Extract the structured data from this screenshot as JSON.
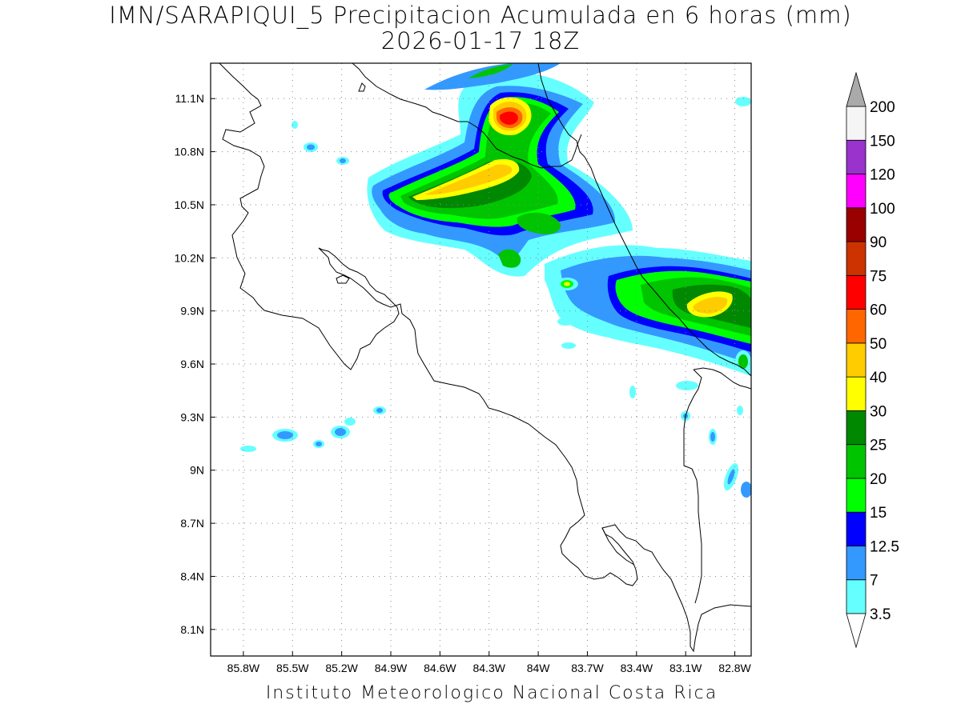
{
  "map": {
    "title_line1": "IMN/SARAPIQUI_5 Precipitacion Acumulada en 6 horas (mm)",
    "title_line2": "2026-01-17 18Z",
    "footer": "Instituto Meteorologico Nacional Costa Rica",
    "lon_ticks": [
      "85.8W",
      "85.5W",
      "85.2W",
      "84.9W",
      "84.6W",
      "84.3W",
      "84W",
      "83.7W",
      "83.4W",
      "83.1W",
      "82.8W"
    ],
    "lat_ticks": [
      "11.1N",
      "10.8N",
      "10.5N",
      "10.2N",
      "9.9N",
      "9.6N",
      "9.3N",
      "9N",
      "8.7N",
      "8.4N",
      "8.1N"
    ],
    "lon_range": [
      -86.0,
      -82.7
    ],
    "lat_range": [
      7.95,
      11.3
    ],
    "grid": "dotted",
    "land_fill": "#ffffff",
    "coastline_color": "#000000"
  },
  "colorbar": {
    "orientation": "vertical",
    "placement": "right",
    "extend": "both",
    "levels": [
      "3.5",
      "7",
      "12.5",
      "15",
      "20",
      "25",
      "30",
      "40",
      "50",
      "60",
      "75",
      "90",
      "100",
      "120",
      "150",
      "200"
    ],
    "colors": [
      "#66ffff",
      "#3399ff",
      "#0000ff",
      "#00ff00",
      "#00c400",
      "#008800",
      "#ffff00",
      "#ffcc00",
      "#ff6600",
      "#ff0000",
      "#cc3300",
      "#990000",
      "#ff00ff",
      "#9933cc",
      "#f5f5f5",
      "#aaaaaa"
    ],
    "under_color": "#ffffff",
    "over_color": "#aaaaaa"
  },
  "precip_cells": [
    {
      "lon": -84.12,
      "lat": 10.58,
      "rx": 110,
      "ry": 26,
      "rot": -28,
      "mm": 12.5
    },
    {
      "lon": -84.12,
      "lat": 10.55,
      "rx": 95,
      "ry": 18,
      "rot": -28,
      "mm": 20
    },
    {
      "lon": -84.18,
      "lat": 10.54,
      "rx": 70,
      "ry": 12,
      "rot": -24,
      "mm": 40
    },
    {
      "lon": -84.0,
      "lat": 11.03,
      "rx": 40,
      "ry": 28,
      "rot": -30,
      "mm": 20
    },
    {
      "lon": -84.0,
      "lat": 11.03,
      "rx": 22,
      "ry": 14,
      "rot": -20,
      "mm": 50
    },
    {
      "lon": -84.0,
      "lat": 11.03,
      "rx": 10,
      "ry": 7,
      "rot": -20,
      "mm": 60
    },
    {
      "lon": -83.32,
      "lat": 10.02,
      "rx": 110,
      "ry": 16,
      "rot": -14,
      "mm": 12.5
    },
    {
      "lon": -82.92,
      "lat": 9.93,
      "rx": 40,
      "ry": 16,
      "rot": -25,
      "mm": 40
    }
  ]
}
